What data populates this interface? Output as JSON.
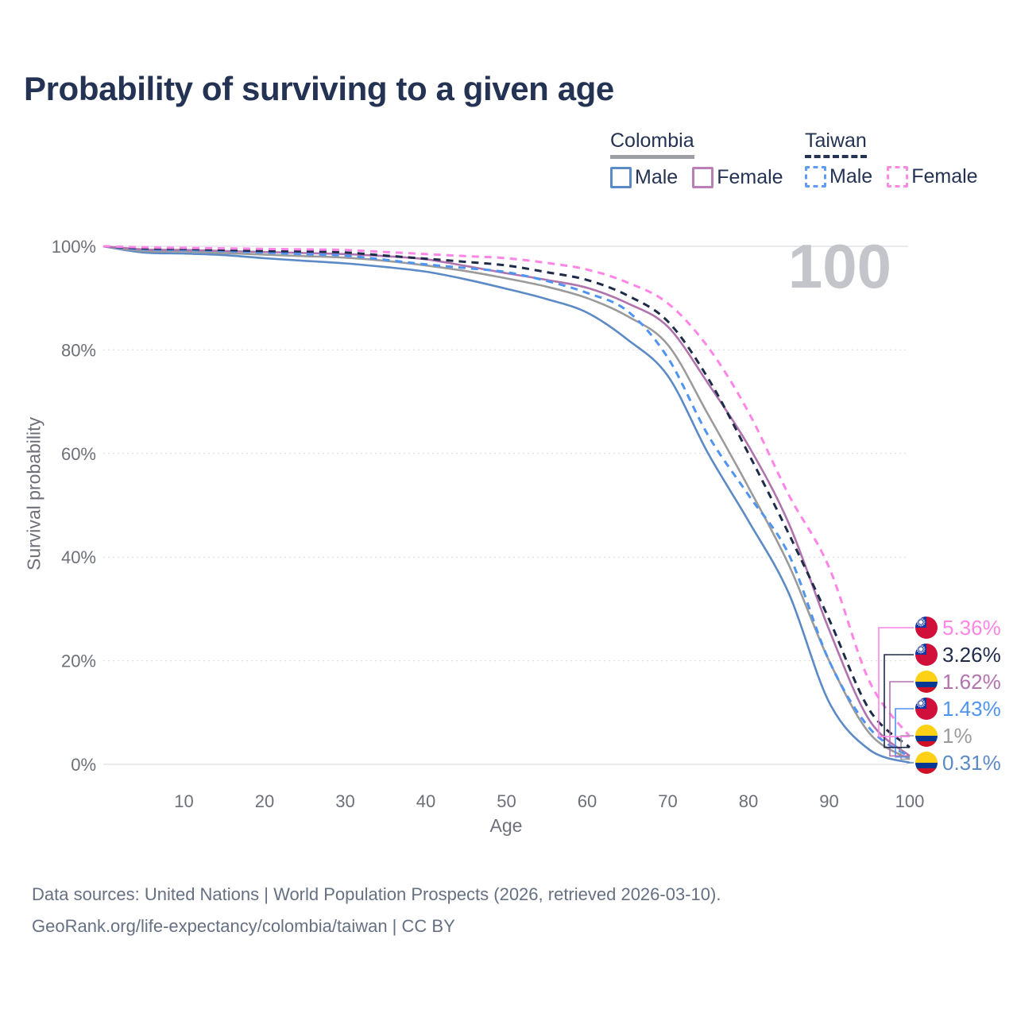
{
  "title": "Probability of surviving to a given age",
  "age_marker_label": "100",
  "legend": {
    "groups": [
      {
        "label": "Colombia",
        "line_style": "solid",
        "underline_color": "#9ca0a5",
        "items": [
          {
            "label": "Male",
            "color": "#5b8ac6",
            "dashed": false
          },
          {
            "label": "Female",
            "color": "#b880b6",
            "dashed": false
          }
        ]
      },
      {
        "label": "Taiwan",
        "line_style": "dashed",
        "underline_color": "#243353",
        "items": [
          {
            "label": "Male",
            "color": "#5e9cf5",
            "dashed": true
          },
          {
            "label": "Female",
            "color": "#ff8ae4",
            "dashed": true
          }
        ]
      }
    ]
  },
  "chart_data": {
    "type": "line",
    "title": "Probability of surviving to a given age",
    "xlabel": "Age",
    "ylabel": "Survival probability",
    "xlim": [
      0,
      100
    ],
    "ylim": [
      0,
      100
    ],
    "x_ticks": [
      10,
      20,
      30,
      40,
      50,
      60,
      70,
      80,
      90,
      100
    ],
    "y_ticks": [
      0,
      20,
      40,
      60,
      80,
      100
    ],
    "y_tick_suffix": "%",
    "grid": true,
    "legend_position": "top-right",
    "x": [
      0,
      5,
      10,
      15,
      20,
      25,
      30,
      35,
      40,
      45,
      50,
      55,
      60,
      65,
      70,
      75,
      80,
      85,
      90,
      95,
      100
    ],
    "series": [
      {
        "name": "Colombia Male",
        "country": "Colombia",
        "sex": "Male",
        "flag": "colombia",
        "color": "#5b8ac6",
        "dash": "solid",
        "end_label": "0.31%",
        "end_value": 0.31,
        "values": [
          100,
          98.8,
          98.6,
          98.3,
          97.7,
          97.2,
          96.7,
          96.0,
          95.1,
          93.6,
          91.8,
          89.8,
          87.2,
          82.0,
          75.0,
          60.0,
          47.0,
          33.0,
          12.0,
          2.8,
          0.31
        ]
      },
      {
        "name": "Colombia Both sexes",
        "country": "Colombia",
        "sex": "Both sexes",
        "flag": "colombia",
        "color": "#9b9b9b",
        "dash": "solid",
        "end_label": "1%",
        "end_value": 1.0,
        "values": [
          100,
          99.1,
          99.0,
          98.7,
          98.4,
          98.1,
          97.8,
          97.2,
          96.3,
          95.2,
          93.8,
          92.2,
          90.0,
          86.5,
          81.0,
          67.5,
          53.5,
          38.5,
          20.0,
          6.0,
          1.0
        ]
      },
      {
        "name": "Colombia Female",
        "country": "Colombia",
        "sex": "Female",
        "flag": "colombia",
        "color": "#b173ae",
        "dash": "solid",
        "end_label": "1.62%",
        "end_value": 1.62,
        "values": [
          100,
          99.4,
          99.3,
          99.1,
          98.9,
          98.7,
          98.5,
          98.1,
          97.5,
          96.2,
          94.8,
          93.5,
          92.0,
          89.0,
          84.5,
          73.5,
          61.5,
          46.5,
          26.0,
          8.5,
          1.62
        ]
      },
      {
        "name": "Taiwan Male",
        "country": "Taiwan",
        "sex": "Male",
        "flag": "taiwan",
        "color": "#4f94f0",
        "dash": "dashed",
        "end_label": "1.43%",
        "end_value": 1.43,
        "values": [
          100,
          99.4,
          99.3,
          99.1,
          98.8,
          98.5,
          98.2,
          97.4,
          96.5,
          95.8,
          95.0,
          93.3,
          91.0,
          87.5,
          78.5,
          63.5,
          52.0,
          40.5,
          20.0,
          7.0,
          1.43
        ]
      },
      {
        "name": "Taiwan Both sexes",
        "country": "Taiwan",
        "sex": "Both sexes",
        "flag": "taiwan",
        "color": "#1e2b49",
        "dash": "dashed",
        "end_label": "3.26%",
        "end_value": 3.26,
        "values": [
          100,
          99.6,
          99.5,
          99.3,
          99.1,
          99.0,
          98.8,
          98.2,
          97.6,
          97.0,
          96.3,
          95.0,
          93.5,
          90.5,
          85.5,
          74.5,
          60.0,
          44.5,
          28.0,
          10.5,
          3.26
        ]
      },
      {
        "name": "Taiwan Female",
        "country": "Taiwan",
        "sex": "Female",
        "flag": "taiwan",
        "color": "#ff85e6",
        "dash": "dashed",
        "end_label": "5.36%",
        "end_value": 5.36,
        "values": [
          100,
          99.8,
          99.7,
          99.6,
          99.5,
          99.4,
          99.3,
          98.9,
          98.5,
          98.1,
          97.7,
          96.8,
          95.5,
          93.0,
          89.0,
          80.5,
          68.0,
          52.0,
          38.0,
          16.0,
          5.36
        ]
      }
    ]
  },
  "flag_colors": {
    "colombia": {
      "yellow": "#FCD116",
      "blue": "#003893",
      "red": "#CE1126"
    },
    "taiwan": {
      "red": "#d0103a",
      "blue": "#1437a6",
      "sun": "#ffffff"
    }
  },
  "footer": {
    "line1": "Data sources: United Nations | World Population Prospects (2026, retrieved 2026-03-10).",
    "line2": "GeoRank.org/life-expectancy/colombia/taiwan | CC BY"
  }
}
